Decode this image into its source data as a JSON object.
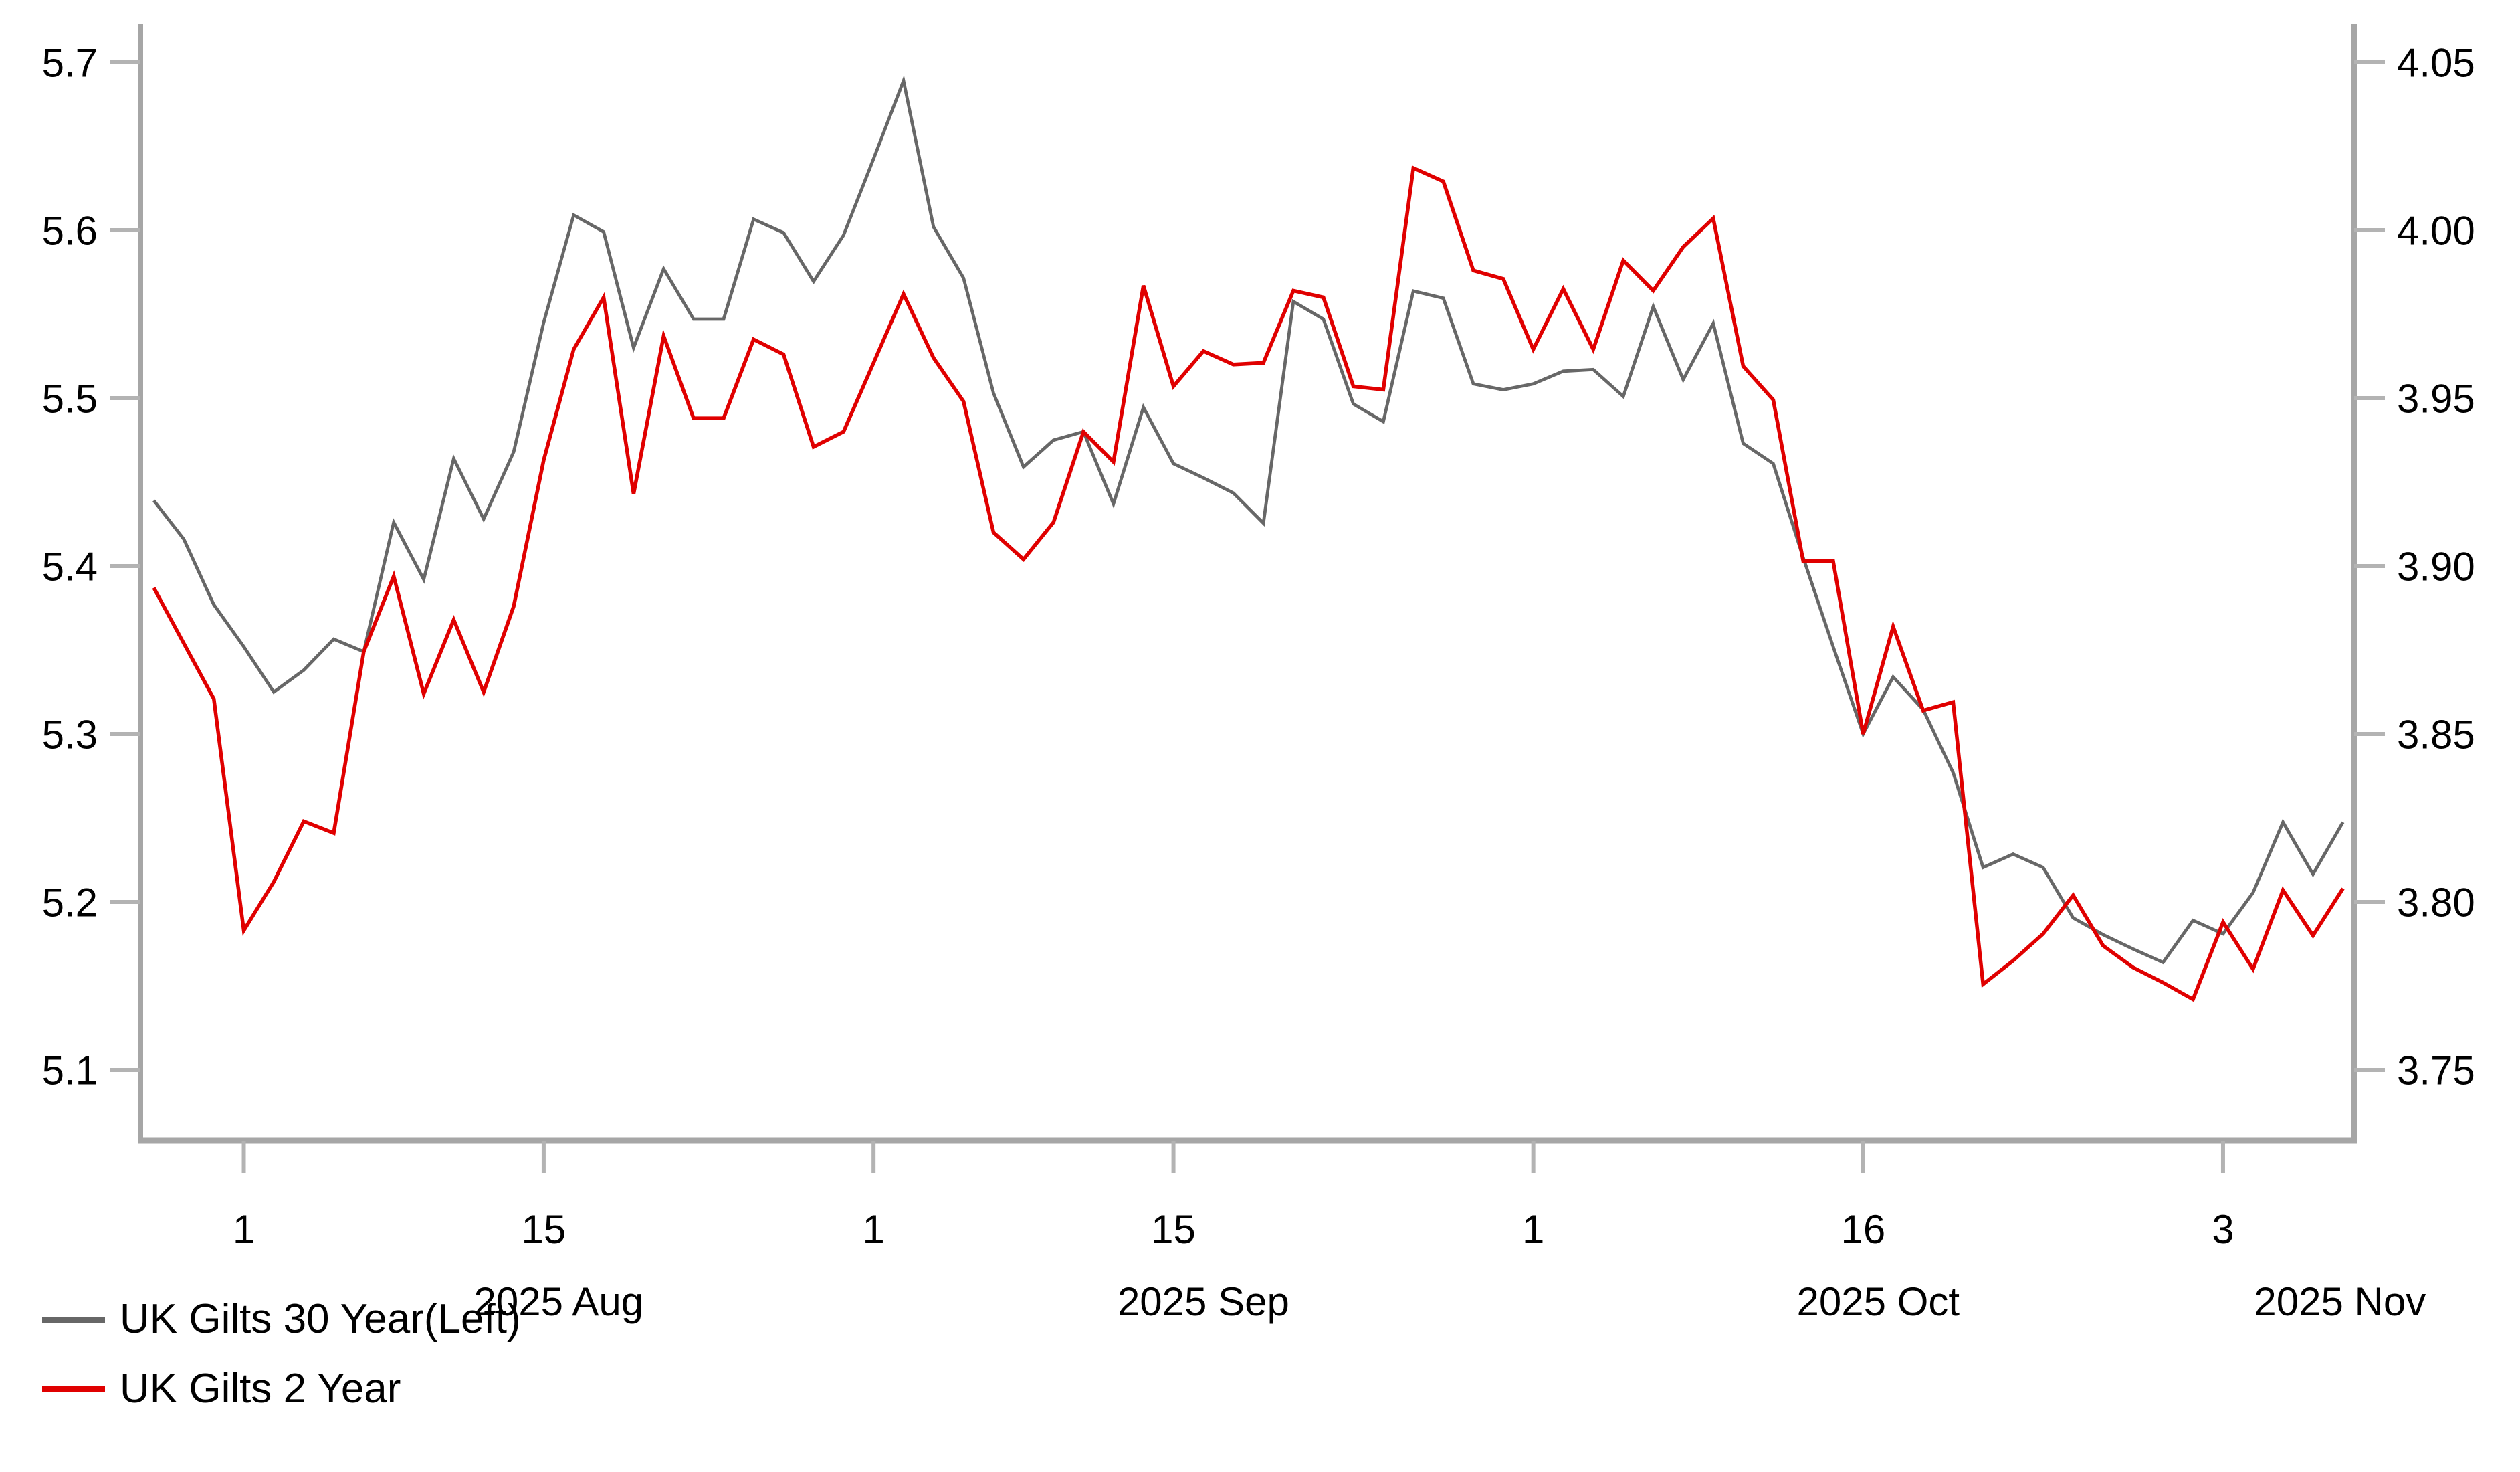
{
  "chart_data": {
    "type": "line",
    "title": "",
    "grid": "off",
    "legend_position": "bottom-left",
    "x_dates": [
      "2025-07-29",
      "2025-07-30",
      "2025-07-31",
      "2025-08-01",
      "2025-08-04",
      "2025-08-05",
      "2025-08-06",
      "2025-08-07",
      "2025-08-08",
      "2025-08-11",
      "2025-08-12",
      "2025-08-13",
      "2025-08-14",
      "2025-08-15",
      "2025-08-18",
      "2025-08-19",
      "2025-08-20",
      "2025-08-21",
      "2025-08-22",
      "2025-08-25",
      "2025-08-26",
      "2025-08-27",
      "2025-08-28",
      "2025-08-29",
      "2025-09-01",
      "2025-09-02",
      "2025-09-03",
      "2025-09-04",
      "2025-09-05",
      "2025-09-08",
      "2025-09-09",
      "2025-09-10",
      "2025-09-11",
      "2025-09-12",
      "2025-09-15",
      "2025-09-16",
      "2025-09-17",
      "2025-09-18",
      "2025-09-19",
      "2025-09-22",
      "2025-09-23",
      "2025-09-24",
      "2025-09-25",
      "2025-09-26",
      "2025-09-29",
      "2025-09-30",
      "2025-10-01",
      "2025-10-02",
      "2025-10-03",
      "2025-10-06",
      "2025-10-07",
      "2025-10-08",
      "2025-10-09",
      "2025-10-10",
      "2025-10-13",
      "2025-10-14",
      "2025-10-15",
      "2025-10-16",
      "2025-10-17",
      "2025-10-20",
      "2025-10-21",
      "2025-10-22",
      "2025-10-23",
      "2025-10-24",
      "2025-10-27",
      "2025-10-28",
      "2025-10-29",
      "2025-10-30",
      "2025-10-31",
      "2025-11-03",
      "2025-11-04",
      "2025-11-05",
      "2025-11-06",
      "2025-11-07"
    ],
    "series": [
      {
        "name": "UK Gilts 30 Year(Left)",
        "axis": "left",
        "color": "#676767",
        "stroke_width": 4.8,
        "values": [
          5.439,
          5.416,
          5.377,
          5.352,
          5.325,
          5.338,
          5.3565,
          5.349,
          5.426,
          5.392,
          5.464,
          5.428,
          5.468,
          5.545,
          5.609,
          5.599,
          5.53,
          5.577,
          5.547,
          5.547,
          5.6065,
          5.5985,
          5.5695,
          5.597,
          5.6425,
          5.689,
          5.602,
          5.5715,
          5.503,
          5.459,
          5.475,
          5.48,
          5.437,
          5.4945,
          5.461,
          5.4525,
          5.4435,
          5.4255,
          5.5575,
          5.547,
          5.4965,
          5.486,
          5.5638,
          5.5595,
          5.5085,
          5.505,
          5.5085,
          5.516,
          5.517,
          5.501,
          5.5545,
          5.511,
          5.5445,
          5.473,
          5.461,
          5.405,
          5.352,
          5.3,
          5.334,
          5.3145,
          5.277,
          5.2205,
          5.2285,
          5.2205,
          5.1905,
          5.1805,
          5.172,
          5.164,
          5.189,
          5.181,
          5.2055,
          5.2475,
          5.2165,
          5.2475
        ]
      },
      {
        "name": "UK Gilts 2 Year",
        "axis": "right",
        "color": "#e00000",
        "stroke_width": 5.5,
        "values": [
          3.8935,
          3.877,
          3.8605,
          3.7915,
          3.806,
          3.824,
          3.8205,
          3.8745,
          3.897,
          3.862,
          3.884,
          3.8625,
          3.888,
          3.9315,
          3.9645,
          3.98,
          3.9215,
          3.9685,
          3.944,
          3.944,
          3.9675,
          3.963,
          3.9355,
          3.94,
          3.9605,
          3.981,
          3.962,
          3.949,
          3.91,
          3.902,
          3.913,
          3.94,
          3.931,
          3.9835,
          3.9535,
          3.964,
          3.96,
          3.9605,
          3.982,
          3.98,
          3.9535,
          3.9525,
          4.0185,
          4.0145,
          3.988,
          3.9855,
          3.9645,
          3.9825,
          3.9645,
          3.991,
          3.982,
          3.995,
          4.0035,
          3.9595,
          3.9495,
          3.9015,
          3.9015,
          3.85,
          3.882,
          3.857,
          3.8595,
          3.7755,
          3.7825,
          3.7905,
          3.802,
          3.787,
          3.7805,
          3.776,
          3.771,
          3.794,
          3.78,
          3.8035,
          3.79,
          3.804
        ]
      }
    ],
    "left_axis": {
      "ticks": [
        "5.7",
        "5.6",
        "5.5",
        "5.4",
        "5.3",
        "5.2",
        "5.1"
      ],
      "top_value": 5.7,
      "bottom_value": 5.1
    },
    "right_axis": {
      "ticks": [
        "4.05",
        "4.00",
        "3.95",
        "3.90",
        "3.85",
        "3.80",
        "3.75"
      ],
      "top_value": 4.05,
      "bottom_value": 3.75
    },
    "x_axis": {
      "day_ticks": [
        {
          "label": "1",
          "index": 3
        },
        {
          "label": "15",
          "index": 13
        },
        {
          "label": "1",
          "index": 24
        },
        {
          "label": "15",
          "index": 34
        },
        {
          "label": "1",
          "index": 46
        },
        {
          "label": "16",
          "index": 57
        },
        {
          "label": "3",
          "index": 69
        }
      ],
      "month_labels": [
        {
          "label": "2025 Aug",
          "center_index": 13.5
        },
        {
          "label": "2025 Sep",
          "center_index": 35
        },
        {
          "label": "2025 Oct",
          "center_index": 57.5
        },
        {
          "label": "2025 Nov",
          "center_index": 72.9
        }
      ]
    },
    "legend": {
      "items": [
        {
          "label": "UK Gilts 30 Year(Left)"
        },
        {
          "label": "UK Gilts 2 Year"
        }
      ]
    },
    "style": {
      "axis_line_color": "#a6a6a6",
      "tick_color": "#b3b3b3",
      "text_color": "#000000"
    }
  }
}
